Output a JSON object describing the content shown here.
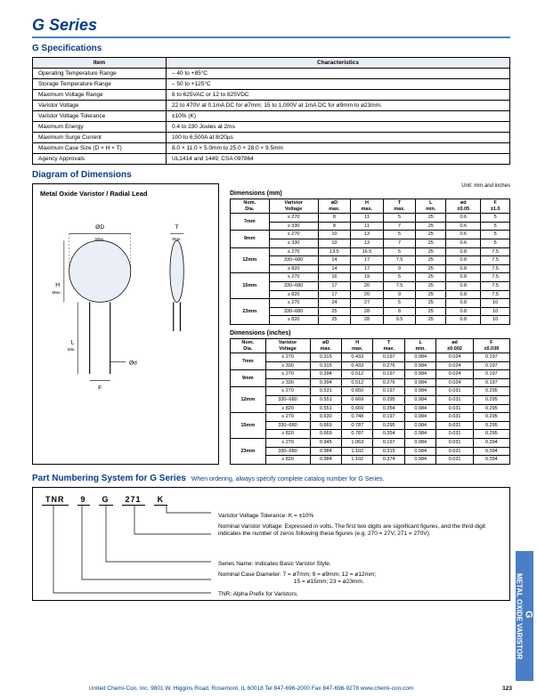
{
  "brand_color": "#063d84",
  "accent_color": "#4a7fc5",
  "series_title": "G Series",
  "sections": {
    "spec_title": "G Specifications",
    "diagram_title": "Diagram of Dimensions",
    "pn_title": "Part Numbering System for G Series",
    "pn_sub": "When ordering, always specify complete catalog number for G Series."
  },
  "spec_table": {
    "headers": [
      "Item",
      "Characteristics"
    ],
    "rows": [
      [
        "Operating Temperature Range",
        "– 40 to +85°C"
      ],
      [
        "Storage Temperature Range",
        "– 50 to +125°C"
      ],
      [
        "Maximum Voltage Range",
        "8 to 625VAC or 12 to 825VDC"
      ],
      [
        "Varistor Voltage",
        "22 to 470V at 0.1mA DC for ø7mm; 15 to 1,000V at 1mA DC for ø9mm to ø23mm."
      ],
      [
        "Varistor Voltage Tolerance",
        "±10% (K)"
      ],
      [
        "Maximum Energy",
        "0.4 to 230 Joules at 2ms"
      ],
      [
        "Maximum Surge Current",
        "100 to 6,500A at 8/20µs"
      ],
      [
        "Maximum Case Size (D × H × T)",
        "8.0 × 11.0 × 5.0mm to 25.0 × 28.0 × 9.5mm"
      ],
      [
        "Agency Approvals",
        "UL1414 and 1449; CSA 097864"
      ]
    ]
  },
  "diagram_left_title": "Metal Oxide Varistor / Radial Lead",
  "unit_label": "Unit: mm and inches",
  "dim_mm": {
    "title": "Dimensions (mm)",
    "headers": [
      "Nom.\nDia.",
      "Varistor\nVoltage",
      "øD\nmax.",
      "H\nmax.",
      "T\nmax.",
      "L\nmin.",
      "ød\n±0.05",
      "F\n±1.0"
    ],
    "groups": [
      {
        "dia": "7mm",
        "rows": [
          [
            "≤ 270",
            "8",
            "11",
            "5",
            "25",
            "0.6",
            "5"
          ],
          [
            "≥ 330",
            "8",
            "11",
            "7",
            "25",
            "0.6",
            "5"
          ]
        ]
      },
      {
        "dia": "9mm",
        "rows": [
          [
            "≤ 270",
            "10",
            "13",
            "5",
            "25",
            "0.6",
            "5"
          ],
          [
            "≥ 330",
            "10",
            "13",
            "7",
            "25",
            "0.6",
            "5"
          ]
        ]
      },
      {
        "dia": "12mm",
        "rows": [
          [
            "≤ 270",
            "13.5",
            "16.5",
            "5",
            "25",
            "0.8",
            "7.5"
          ],
          [
            "330–680",
            "14",
            "17",
            "7.5",
            "25",
            "0.8",
            "7.5"
          ],
          [
            "≥ 820",
            "14",
            "17",
            "9",
            "25",
            "0.8",
            "7.5"
          ]
        ]
      },
      {
        "dia": "15mm",
        "rows": [
          [
            "≤ 270",
            "16",
            "19",
            "5",
            "25",
            "0.8",
            "7.5"
          ],
          [
            "330–680",
            "17",
            "20",
            "7.5",
            "25",
            "0.8",
            "7.5"
          ],
          [
            "≥ 820",
            "17",
            "20",
            "9",
            "25",
            "0.8",
            "7.5"
          ]
        ]
      },
      {
        "dia": "23mm",
        "rows": [
          [
            "≤ 270",
            "24",
            "27",
            "5",
            "25",
            "0.8",
            "10"
          ],
          [
            "330–680",
            "25",
            "28",
            "8",
            "25",
            "0.8",
            "10"
          ],
          [
            "≥ 820",
            "25",
            "28",
            "9.5",
            "25",
            "0.8",
            "10"
          ]
        ]
      }
    ]
  },
  "dim_in": {
    "title": "Dimensions (inches)",
    "headers": [
      "Nom.\nDia.",
      "Varistor\nVoltage",
      "øD\nmax.",
      "H\nmax.",
      "T\nmax.",
      "L\nmin.",
      "ød\n±0.002",
      "F\n±0.039"
    ],
    "groups": [
      {
        "dia": "7mm",
        "rows": [
          [
            "≤ 270",
            "0.315",
            "0.433",
            "0.197",
            "0.984",
            "0.024",
            "0.197"
          ],
          [
            "≥ 330",
            "0.315",
            "0.433",
            "0.276",
            "0.984",
            "0.024",
            "0.197"
          ]
        ]
      },
      {
        "dia": "9mm",
        "rows": [
          [
            "≤ 270",
            "0.394",
            "0.512",
            "0.197",
            "0.984",
            "0.024",
            "0.197"
          ],
          [
            "≥ 330",
            "0.394",
            "0.512",
            "0.276",
            "0.984",
            "0.024",
            "0.197"
          ]
        ]
      },
      {
        "dia": "12mm",
        "rows": [
          [
            "≤ 270",
            "0.531",
            "0.650",
            "0.197",
            "0.984",
            "0.031",
            "0.295"
          ],
          [
            "330–680",
            "0.551",
            "0.669",
            "0.295",
            "0.984",
            "0.031",
            "0.295"
          ],
          [
            "≥ 820",
            "0.551",
            "0.669",
            "0.354",
            "0.984",
            "0.031",
            "0.295"
          ]
        ]
      },
      {
        "dia": "15mm",
        "rows": [
          [
            "≤ 270",
            "0.630",
            "0.748",
            "0.197",
            "0.984",
            "0.031",
            "0.295"
          ],
          [
            "330–680",
            "0.669",
            "0.787",
            "0.295",
            "0.984",
            "0.031",
            "0.295"
          ],
          [
            "≥ 820",
            "0.669",
            "0.787",
            "0.354",
            "0.984",
            "0.031",
            "0.295"
          ]
        ]
      },
      {
        "dia": "23mm",
        "rows": [
          [
            "≤ 270",
            "0.945",
            "1.063",
            "0.197",
            "0.984",
            "0.031",
            "0.394"
          ],
          [
            "330–680",
            "0.984",
            "1.102",
            "0.315",
            "0.984",
            "0.031",
            "0.394"
          ],
          [
            "≥ 820",
            "0.984",
            "1.102",
            "0.374",
            "0.984",
            "0.031",
            "0.394"
          ]
        ]
      }
    ]
  },
  "pn_code": [
    "TNR",
    "9",
    "G",
    "271",
    "K"
  ],
  "pn_desc": [
    "Varistor Voltage Tolerance: K = ±10%",
    "Nominal Varistor Voltage: Expressed in volts. The first two digits are significant figures, and the third digit indicates the number of zeros following these figures (e.g. 270 = 27V; 271 = 270V).",
    "Series Name: Indicates Basic Varistor Style.",
    "Nominal Case Diameter: 7 = ø7mm; 9 = ø9mm; 12 = ø12mm;\n                                               15 = ø15mm; 23 = ø23mm.",
    "TNR: Alpha Prefix for Varistors."
  ],
  "footer": "United Chemi-Con, Inc.  9801 W. Higgins Road, Rosemont, IL 60018  Tel 847-696-2000  Fax 847-696-9278  www.chemi-con.com",
  "page_no": "123",
  "side_tab": {
    "g": "G",
    "text": "METAL OXIDE VARISTOR"
  },
  "svg_labels": {
    "od": "ØD",
    "t": "T",
    "h": "H",
    "l": "L",
    "f": "F",
    "od2": "Ød",
    "max": "Max.",
    "min": "Min."
  }
}
